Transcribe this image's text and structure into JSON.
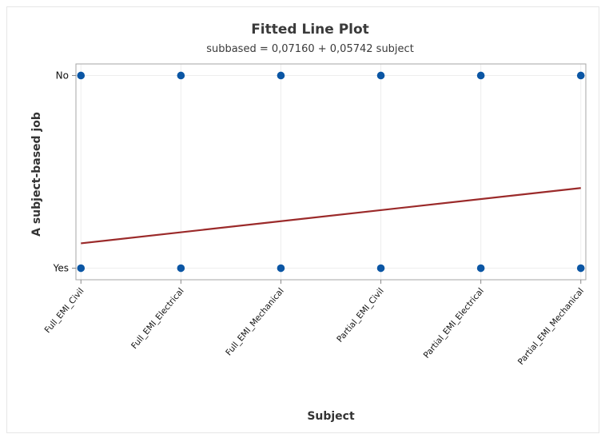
{
  "chart_data": {
    "type": "scatter",
    "title": "Fitted Line Plot",
    "subtitle": "subbased = 0,07160 + 0,05742 subject",
    "xlabel": "Subject",
    "ylabel": "A subject-based job",
    "categories": [
      "Full_EMI_Civil",
      "Full_EMI_Electrical",
      "Full_EMI_Mechanical",
      "Partial_EMI_Civil",
      "Partial_EMI_Electrical",
      "Partial_EMI_Mechanical"
    ],
    "y_tick_labels": [
      "Yes",
      "No"
    ],
    "y_tick_values": [
      0,
      1
    ],
    "points": [
      {
        "x": 1,
        "y": 1
      },
      {
        "x": 2,
        "y": 1
      },
      {
        "x": 3,
        "y": 1
      },
      {
        "x": 4,
        "y": 1
      },
      {
        "x": 5,
        "y": 1
      },
      {
        "x": 6,
        "y": 1
      },
      {
        "x": 1,
        "y": 0
      },
      {
        "x": 2,
        "y": 0
      },
      {
        "x": 3,
        "y": 0
      },
      {
        "x": 4,
        "y": 0
      },
      {
        "x": 5,
        "y": 0
      },
      {
        "x": 6,
        "y": 0
      }
    ],
    "fit": {
      "intercept": 0.0716,
      "slope": 0.05742,
      "x_range": [
        1,
        6
      ]
    },
    "ylim": [
      -0.06,
      1.06
    ],
    "xlim": [
      0.95,
      6.05
    ],
    "grid": true,
    "colors": {
      "points": "#0b56a4",
      "fit_line": "#9b2a2a",
      "grid": "#eeeeee",
      "frame": "#a6a6a6"
    }
  }
}
